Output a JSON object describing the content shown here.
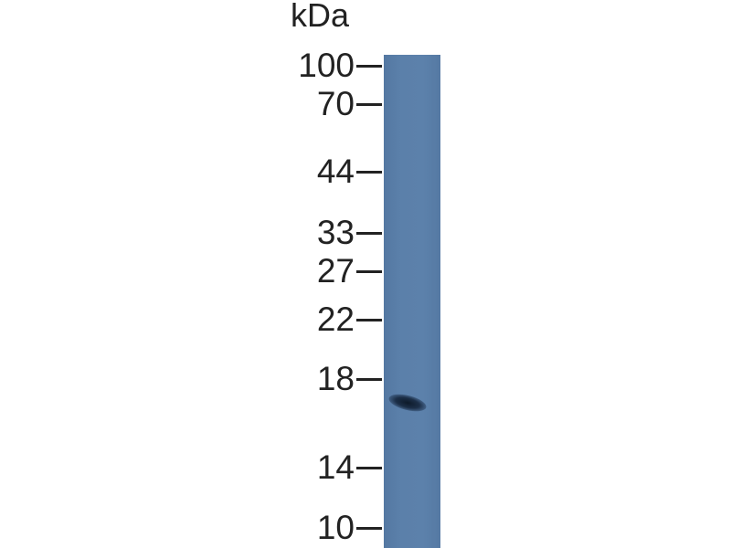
{
  "unit_label": "kDa",
  "markers": [
    {
      "label": "100",
      "kda": 100
    },
    {
      "label": "70",
      "kda": 70
    },
    {
      "label": "44",
      "kda": 44
    },
    {
      "label": "33",
      "kda": 33
    },
    {
      "label": "27",
      "kda": 27
    },
    {
      "label": "22",
      "kda": 22
    },
    {
      "label": "18",
      "kda": 18
    },
    {
      "label": "14",
      "kda": 14
    },
    {
      "label": "10",
      "kda": 10
    }
  ],
  "lane_color": "#5a7fa9",
  "band": {
    "approx_kda": 16.5,
    "color": "#142338"
  }
}
